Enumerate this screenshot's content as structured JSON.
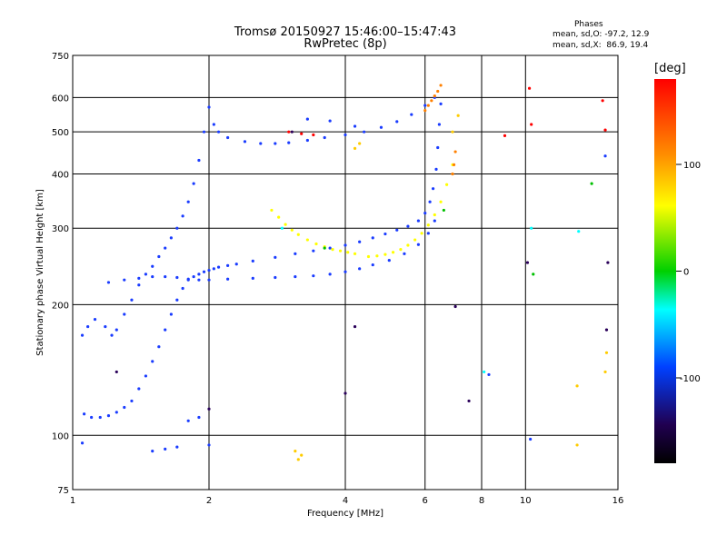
{
  "header": {
    "title_line1": "Tromsø 20150927 15:46:00–15:47:43",
    "title_line2": "RwPretec (8p)",
    "phase_heading": "Phases",
    "stat_o": "mean, sd,O: -97.2, 12.9",
    "stat_x": "mean, sd,X:  86.9, 19.4"
  },
  "chart_data": {
    "type": "scatter",
    "xlabel": "Frequency [MHz]",
    "ylabel": "Stationary phase Virtual Height [km]",
    "x_scale": "log",
    "y_scale": "log",
    "xlim": [
      1,
      16
    ],
    "ylim": [
      75,
      750
    ],
    "x_ticks": [
      1,
      2,
      4,
      6,
      8,
      10,
      16
    ],
    "y_ticks": [
      75,
      100,
      200,
      300,
      400,
      500,
      600,
      750
    ],
    "grid": true,
    "colorbar": {
      "label": "[deg]",
      "range": [
        -180,
        180
      ],
      "ticks": [
        100,
        0,
        -100
      ],
      "colors": [
        "#ff0000",
        "#ff8000",
        "#ffff00",
        "#00c000",
        "#00ffff",
        "#0000ff",
        "#1a0040",
        "#000000"
      ]
    },
    "series": [
      {
        "color": "#1a3cff",
        "points": [
          [
            1.06,
            112
          ],
          [
            1.1,
            110
          ],
          [
            1.15,
            110
          ],
          [
            1.2,
            111
          ],
          [
            1.25,
            113
          ],
          [
            1.3,
            116
          ],
          [
            1.35,
            120
          ],
          [
            1.4,
            128
          ],
          [
            1.45,
            137
          ],
          [
            1.5,
            148
          ],
          [
            1.55,
            160
          ],
          [
            1.6,
            175
          ],
          [
            1.65,
            190
          ],
          [
            1.7,
            205
          ],
          [
            1.75,
            218
          ],
          [
            1.8,
            228
          ],
          [
            1.85,
            232
          ],
          [
            1.9,
            235
          ],
          [
            1.95,
            238
          ],
          [
            2.0,
            240
          ],
          [
            2.05,
            242
          ],
          [
            2.1,
            244
          ],
          [
            2.2,
            246
          ],
          [
            2.3,
            248
          ],
          [
            2.5,
            252
          ],
          [
            2.8,
            257
          ],
          [
            3.1,
            262
          ],
          [
            3.4,
            266
          ],
          [
            3.7,
            270
          ],
          [
            4.0,
            274
          ],
          [
            4.3,
            279
          ],
          [
            4.6,
            285
          ],
          [
            4.9,
            291
          ],
          [
            5.2,
            297
          ],
          [
            5.5,
            303
          ],
          [
            5.8,
            312
          ],
          [
            6.0,
            325
          ],
          [
            6.15,
            345
          ],
          [
            6.25,
            370
          ],
          [
            6.35,
            410
          ],
          [
            6.4,
            460
          ],
          [
            6.45,
            520
          ],
          [
            6.5,
            580
          ]
        ]
      },
      {
        "color": "#1a3cff",
        "points": [
          [
            1.05,
            170
          ],
          [
            1.08,
            178
          ],
          [
            1.12,
            185
          ],
          [
            1.18,
            178
          ],
          [
            1.22,
            170
          ],
          [
            1.25,
            175
          ],
          [
            1.3,
            190
          ],
          [
            1.35,
            205
          ],
          [
            1.4,
            222
          ],
          [
            1.45,
            235
          ],
          [
            1.5,
            245
          ],
          [
            1.55,
            258
          ],
          [
            1.6,
            270
          ],
          [
            1.65,
            285
          ],
          [
            1.7,
            300
          ],
          [
            1.75,
            320
          ],
          [
            1.8,
            345
          ],
          [
            1.85,
            380
          ],
          [
            1.9,
            430
          ],
          [
            1.95,
            500
          ],
          [
            2.0,
            570
          ],
          [
            2.05,
            520
          ],
          [
            2.1,
            500
          ],
          [
            2.2,
            485
          ],
          [
            2.4,
            475
          ],
          [
            2.6,
            470
          ],
          [
            2.8,
            470
          ],
          [
            3.0,
            472
          ],
          [
            3.3,
            478
          ],
          [
            3.6,
            485
          ],
          [
            4.0,
            492
          ],
          [
            4.4,
            500
          ],
          [
            4.8,
            512
          ],
          [
            5.2,
            528
          ],
          [
            5.6,
            548
          ],
          [
            6.0,
            575
          ],
          [
            6.3,
            600
          ]
        ]
      },
      {
        "color": "#1a3cff",
        "points": [
          [
            1.2,
            225
          ],
          [
            1.3,
            228
          ],
          [
            1.4,
            230
          ],
          [
            1.5,
            232
          ],
          [
            1.6,
            232
          ],
          [
            1.7,
            231
          ],
          [
            1.8,
            229
          ],
          [
            1.9,
            228
          ],
          [
            2.0,
            228
          ],
          [
            2.2,
            229
          ],
          [
            2.5,
            230
          ],
          [
            2.8,
            231
          ],
          [
            3.1,
            232
          ],
          [
            3.4,
            233
          ],
          [
            3.7,
            235
          ],
          [
            4.0,
            238
          ],
          [
            4.3,
            242
          ],
          [
            4.6,
            247
          ],
          [
            5.0,
            253
          ],
          [
            5.4,
            262
          ],
          [
            5.8,
            275
          ],
          [
            6.1,
            292
          ],
          [
            6.3,
            312
          ]
        ]
      },
      {
        "color": "#ffff00",
        "points": [
          [
            2.75,
            330
          ],
          [
            2.85,
            318
          ],
          [
            2.95,
            306
          ],
          [
            3.05,
            297
          ],
          [
            3.15,
            290
          ],
          [
            3.3,
            282
          ],
          [
            3.45,
            276
          ],
          [
            3.6,
            272
          ],
          [
            3.75,
            268
          ],
          [
            3.9,
            266
          ],
          [
            4.05,
            264
          ],
          [
            4.2,
            262
          ]
        ]
      },
      {
        "color": "#ffff00",
        "points": [
          [
            4.5,
            258
          ],
          [
            4.7,
            259
          ],
          [
            4.9,
            261
          ],
          [
            5.1,
            264
          ],
          [
            5.3,
            268
          ],
          [
            5.5,
            274
          ],
          [
            5.7,
            282
          ],
          [
            5.9,
            292
          ],
          [
            6.1,
            305
          ],
          [
            6.3,
            322
          ],
          [
            6.5,
            345
          ],
          [
            6.7,
            378
          ],
          [
            6.9,
            420
          ]
        ]
      },
      {
        "color": "#ff8000",
        "points": [
          [
            6.0,
            560
          ],
          [
            6.1,
            575
          ],
          [
            6.2,
            590
          ],
          [
            6.3,
            605
          ],
          [
            6.4,
            620
          ],
          [
            6.5,
            640
          ],
          [
            7.0,
            450
          ],
          [
            6.95,
            420
          ],
          [
            6.9,
            400
          ]
        ]
      },
      {
        "color": "#ff0000",
        "points": [
          [
            3.0,
            500
          ],
          [
            3.2,
            495
          ],
          [
            3.4,
            492
          ],
          [
            10.2,
            630
          ],
          [
            10.3,
            520
          ],
          [
            14.8,
            590
          ],
          [
            15.0,
            505
          ],
          [
            9.0,
            490
          ]
        ]
      },
      {
        "color": "#00c000",
        "points": [
          [
            3.6,
            270
          ],
          [
            6.6,
            330
          ],
          [
            10.4,
            235
          ],
          [
            14.0,
            380
          ]
        ]
      },
      {
        "color": "#00ffff",
        "points": [
          [
            2.9,
            300
          ],
          [
            8.1,
            140
          ],
          [
            10.3,
            300
          ],
          [
            13.1,
            295
          ]
        ]
      },
      {
        "color": "#2a005a",
        "points": [
          [
            1.25,
            140
          ],
          [
            2.0,
            115
          ],
          [
            3.05,
            500
          ],
          [
            4.0,
            125
          ],
          [
            4.2,
            178
          ],
          [
            7.0,
            198
          ],
          [
            7.5,
            120
          ],
          [
            10.1,
            250
          ],
          [
            15.1,
            175
          ],
          [
            15.2,
            250
          ]
        ]
      },
      {
        "color": "#1a3cff",
        "points": [
          [
            1.05,
            96
          ],
          [
            1.5,
            92
          ],
          [
            1.6,
            93
          ],
          [
            1.7,
            94
          ],
          [
            1.8,
            108
          ],
          [
            1.9,
            110
          ],
          [
            2.0,
            95
          ],
          [
            3.3,
            535
          ],
          [
            3.7,
            530
          ],
          [
            4.2,
            515
          ],
          [
            8.3,
            138
          ],
          [
            10.25,
            98
          ],
          [
            15.0,
            440
          ]
        ]
      },
      {
        "color": "#ffcc00",
        "points": [
          [
            3.1,
            92
          ],
          [
            3.15,
            88
          ],
          [
            3.2,
            90
          ],
          [
            4.2,
            458
          ],
          [
            4.3,
            470
          ],
          [
            6.9,
            500
          ],
          [
            7.1,
            545
          ],
          [
            13.0,
            130
          ],
          [
            13.0,
            95
          ],
          [
            15.1,
            155
          ],
          [
            15.0,
            140
          ]
        ]
      }
    ]
  }
}
